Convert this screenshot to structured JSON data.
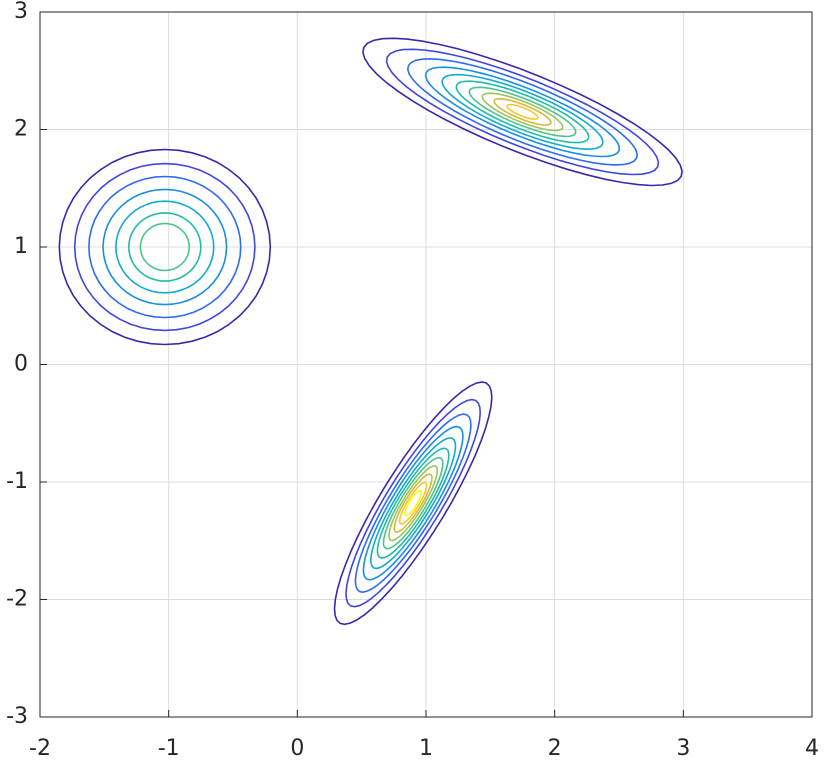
{
  "chart_data": {
    "type": "contour",
    "xlim": [
      -2,
      4
    ],
    "ylim": [
      -3,
      3
    ],
    "xticks": [
      -2,
      -1,
      0,
      1,
      2,
      3,
      4
    ],
    "yticks": [
      -3,
      -2,
      -1,
      0,
      1,
      2,
      3
    ],
    "grid": true,
    "colors": [
      "#3e26a8",
      "#4145e0",
      "#2e6bf2",
      "#1a8ee0",
      "#12aacd",
      "#1fbca8",
      "#4ec48a",
      "#9ec35c",
      "#d6b83e",
      "#f3c92e",
      "#f9fb0e"
    ],
    "clusters": [
      {
        "center": [
          -1.03,
          1.0
        ],
        "angle": 0,
        "contours": [
          [
            0.82,
            0.83
          ],
          [
            0.7,
            0.71
          ],
          [
            0.59,
            0.6
          ],
          [
            0.48,
            0.49
          ],
          [
            0.38,
            0.39
          ],
          [
            0.28,
            0.29
          ],
          [
            0.19,
            0.2
          ]
        ]
      },
      {
        "center": [
          1.75,
          2.15
        ],
        "angle": -24,
        "contours": [
          [
            1.35,
            0.33
          ],
          [
            1.15,
            0.28
          ],
          [
            0.97,
            0.24
          ],
          [
            0.82,
            0.2
          ],
          [
            0.68,
            0.17
          ],
          [
            0.56,
            0.14
          ],
          [
            0.45,
            0.11
          ],
          [
            0.34,
            0.085
          ],
          [
            0.24,
            0.06
          ],
          [
            0.13,
            0.035
          ]
        ]
      },
      {
        "center": [
          0.9,
          -1.18
        ],
        "angle": 61,
        "contours": [
          [
            1.17,
            0.26
          ],
          [
            1.0,
            0.22
          ],
          [
            0.86,
            0.19
          ],
          [
            0.74,
            0.165
          ],
          [
            0.63,
            0.14
          ],
          [
            0.53,
            0.12
          ],
          [
            0.44,
            0.1
          ],
          [
            0.36,
            0.08
          ],
          [
            0.28,
            0.063
          ],
          [
            0.2,
            0.046
          ],
          [
            0.12,
            0.03
          ]
        ]
      }
    ]
  }
}
